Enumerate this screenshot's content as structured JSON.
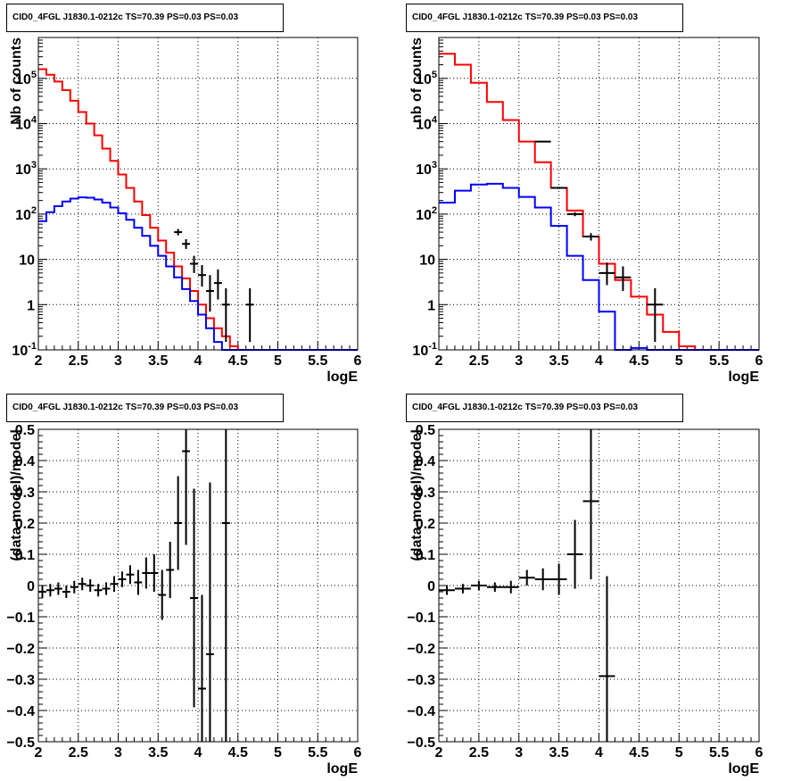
{
  "chart_data": [
    {
      "type": "line",
      "title": "CID0_4FGL J1830.1-0212c TS=70.39 PS=0.03 PS=0.03",
      "xlabel": "logE",
      "ylabel": "Nb of counts",
      "xlim": [
        2,
        6
      ],
      "ylim": [
        0.1,
        800000
      ],
      "yscale": "log",
      "grid": true,
      "x_ticks": [
        "2",
        "2.5",
        "3",
        "3.5",
        "4",
        "4.5",
        "5",
        "5.5",
        "6"
      ],
      "y_ticks": [
        "10^-1",
        "1",
        "10",
        "10^2",
        "10^3",
        "10^4",
        "10^5"
      ],
      "bin_edges": [
        2.0,
        2.1,
        2.2,
        2.3,
        2.4,
        2.5,
        2.6,
        2.7,
        2.8,
        2.9,
        3.0,
        3.1,
        3.2,
        3.3,
        3.4,
        3.5,
        3.6,
        3.7,
        3.8,
        3.9,
        4.0,
        4.1,
        4.2,
        4.3,
        4.4,
        4.5,
        4.6,
        4.7,
        4.8,
        4.9,
        5.0,
        5.1,
        5.2,
        5.3,
        5.4,
        5.5,
        5.6,
        5.7,
        5.8,
        5.9,
        6.0
      ],
      "series": [
        {
          "color": "#ff0000",
          "values": [
            160000,
            120000,
            85000,
            55000,
            32000,
            18000,
            10000,
            5500,
            2800,
            1500,
            750,
            380,
            190,
            95,
            50,
            26,
            14,
            7,
            3.8,
            2.0,
            1.0,
            0.5,
            0.3,
            0.2,
            0.12,
            0.1,
            0.1,
            0.1,
            0.1,
            0.1,
            0.1,
            0.1,
            0.1,
            0.1,
            0.1,
            0.1,
            0.1,
            0.1,
            0.1,
            0.1
          ]
        },
        {
          "color": "#0000ff",
          "values": [
            70,
            110,
            150,
            190,
            220,
            235,
            230,
            210,
            180,
            140,
            105,
            75,
            50,
            33,
            20,
            12,
            7,
            4,
            2.2,
            1.2,
            0.6,
            0.3,
            0.15,
            0.1,
            0.1,
            0.1,
            0.1,
            0.1,
            0.1,
            0.1,
            0.1,
            0.1,
            0.1,
            0.1,
            0.1,
            0.1,
            0.1,
            0.1,
            0.1,
            0.1
          ]
        }
      ],
      "points": [
        {
          "x": 3.75,
          "y": 40,
          "xerr": 0.05,
          "yerr": [
            6,
            7
          ]
        },
        {
          "x": 3.85,
          "y": 22,
          "xerr": 0.05,
          "yerr": [
            5,
            6
          ]
        },
        {
          "x": 3.95,
          "y": 8,
          "xerr": 0.05,
          "yerr": [
            3,
            4
          ]
        },
        {
          "x": 4.05,
          "y": 4.5,
          "xerr": 0.05,
          "yerr": [
            2,
            3
          ]
        },
        {
          "x": 4.15,
          "y": 2.0,
          "xerr": 0.05,
          "yerr": [
            1.3,
            2.5
          ]
        },
        {
          "x": 4.25,
          "y": 3.0,
          "xerr": 0.05,
          "yerr": [
            1.7,
            3
          ]
        },
        {
          "x": 4.35,
          "y": 1.0,
          "xerr": 0.05,
          "yerr": [
            0.85,
            1.3
          ]
        },
        {
          "x": 4.65,
          "y": 1.0,
          "xerr": 0.05,
          "yerr": [
            0.85,
            1.3
          ]
        }
      ]
    },
    {
      "type": "line",
      "title": "CID0_4FGL J1830.1-0212c TS=70.39 PS=0.03 PS=0.03",
      "xlabel": "logE",
      "ylabel": "nb of counts",
      "xlim": [
        2,
        6
      ],
      "ylim": [
        0.1,
        800000
      ],
      "yscale": "log",
      "grid": true,
      "x_ticks": [
        "2",
        "2.5",
        "3",
        "3.5",
        "4",
        "4.5",
        "5",
        "5.5",
        "6"
      ],
      "y_ticks": [
        "10^-1",
        "1",
        "10",
        "10^2",
        "10^3",
        "10^4",
        "10^5"
      ],
      "bin_edges": [
        2.0,
        2.2,
        2.4,
        2.6,
        2.8,
        3.0,
        3.2,
        3.4,
        3.6,
        3.8,
        4.0,
        4.2,
        4.4,
        4.6,
        4.8,
        5.0,
        5.2,
        5.4,
        5.6,
        5.8,
        6.0
      ],
      "series": [
        {
          "color": "#ff0000",
          "values": [
            350000,
            200000,
            80000,
            30000,
            12000,
            4000,
            1400,
            380,
            120,
            32,
            8,
            3.5,
            1.5,
            0.6,
            0.25,
            0.12,
            0.1,
            0.1,
            0.1,
            0.1
          ]
        },
        {
          "color": "#0000ff",
          "values": [
            180,
            330,
            450,
            470,
            380,
            240,
            140,
            55,
            12,
            3.5,
            0.7,
            0.1,
            0.11,
            0.1,
            0.1,
            0.1,
            0.1,
            0.1,
            0.1,
            0.1
          ]
        }
      ],
      "points": [
        {
          "x": 3.3,
          "y": 4000,
          "xerr": 0.1,
          "yerr": [
            60,
            60
          ]
        },
        {
          "x": 3.5,
          "y": 380,
          "xerr": 0.1,
          "yerr": [
            20,
            20
          ]
        },
        {
          "x": 3.7,
          "y": 100,
          "xerr": 0.1,
          "yerr": [
            10,
            10
          ]
        },
        {
          "x": 3.9,
          "y": 32,
          "xerr": 0.1,
          "yerr": [
            6,
            6
          ]
        },
        {
          "x": 4.1,
          "y": 5,
          "xerr": 0.1,
          "yerr": [
            2.3,
            3.5
          ]
        },
        {
          "x": 4.3,
          "y": 4,
          "xerr": 0.1,
          "yerr": [
            2,
            3
          ]
        },
        {
          "x": 4.7,
          "y": 1.0,
          "xerr": 0.1,
          "yerr": [
            0.85,
            1.3
          ]
        }
      ]
    },
    {
      "type": "scatter",
      "title": "CID0_4FGL J1830.1-0212c TS=70.39 PS=0.03 PS=0.03",
      "xlabel": "logE",
      "ylabel": "(data-model)/model",
      "xlim": [
        2,
        6
      ],
      "ylim": [
        -0.5,
        0.5
      ],
      "grid": true,
      "x_ticks": [
        "2",
        "2.5",
        "3",
        "3.5",
        "4",
        "4.5",
        "5",
        "5.5",
        "6"
      ],
      "y_ticks": [
        "−0.5",
        "−0.4",
        "−0.3",
        "−0.2",
        "−0.1",
        "0",
        "0.1",
        "0.2",
        "0.3",
        "0.4",
        "0.5"
      ],
      "points": [
        {
          "x": 2.05,
          "y": -0.02,
          "xerr": 0.05,
          "yerr": 0.02
        },
        {
          "x": 2.15,
          "y": -0.015,
          "xerr": 0.05,
          "yerr": 0.02
        },
        {
          "x": 2.25,
          "y": -0.01,
          "xerr": 0.05,
          "yerr": 0.02
        },
        {
          "x": 2.35,
          "y": -0.02,
          "xerr": 0.05,
          "yerr": 0.02
        },
        {
          "x": 2.45,
          "y": -0.005,
          "xerr": 0.05,
          "yerr": 0.02
        },
        {
          "x": 2.55,
          "y": 0.005,
          "xerr": 0.05,
          "yerr": 0.02
        },
        {
          "x": 2.65,
          "y": 0.0,
          "xerr": 0.05,
          "yerr": 0.02
        },
        {
          "x": 2.75,
          "y": -0.015,
          "xerr": 0.05,
          "yerr": 0.02
        },
        {
          "x": 2.85,
          "y": -0.01,
          "xerr": 0.05,
          "yerr": 0.02
        },
        {
          "x": 2.95,
          "y": 0.005,
          "xerr": 0.05,
          "yerr": 0.025
        },
        {
          "x": 3.05,
          "y": 0.02,
          "xerr": 0.05,
          "yerr": 0.025
        },
        {
          "x": 3.15,
          "y": 0.035,
          "xerr": 0.05,
          "yerr": 0.03
        },
        {
          "x": 3.25,
          "y": 0.01,
          "xerr": 0.05,
          "yerr": 0.04
        },
        {
          "x": 3.35,
          "y": 0.04,
          "xerr": 0.05,
          "yerr": 0.05
        },
        {
          "x": 3.45,
          "y": 0.04,
          "xerr": 0.05,
          "yerr": 0.06
        },
        {
          "x": 3.55,
          "y": -0.03,
          "xerr": 0.05,
          "yerr": 0.08
        },
        {
          "x": 3.65,
          "y": 0.05,
          "xerr": 0.05,
          "yerr": 0.09
        },
        {
          "x": 3.75,
          "y": 0.2,
          "xerr": 0.05,
          "yerr": 0.15
        },
        {
          "x": 3.85,
          "y": 0.43,
          "xerr": 0.05,
          "yerr": 0.3
        },
        {
          "x": 3.95,
          "y": -0.04,
          "xerr": 0.05,
          "yerr": 0.35
        },
        {
          "x": 4.05,
          "y": -0.33,
          "xerr": 0.05,
          "yerr": 0.3
        },
        {
          "x": 4.15,
          "y": -0.22,
          "xerr": 0.05,
          "yerr": 0.55
        },
        {
          "x": 4.35,
          "y": 0.2,
          "xerr": 0.05,
          "yerr": 0.9
        }
      ]
    },
    {
      "type": "scatter",
      "title": "CID0_4FGL J1830.1-0212c TS=70.39 PS=0.03 PS=0.03",
      "xlabel": "logE",
      "ylabel": "(data-model)/model",
      "xlim": [
        2,
        6
      ],
      "ylim": [
        -0.5,
        0.5
      ],
      "grid": true,
      "x_ticks": [
        "2",
        "2.5",
        "3",
        "3.5",
        "4",
        "4.5",
        "5",
        "5.5",
        "6"
      ],
      "y_ticks": [
        "−0.5",
        "−0.4",
        "−0.3",
        "−0.2",
        "−0.1",
        "0",
        "0.1",
        "0.2",
        "0.3",
        "0.4",
        "0.5"
      ],
      "points": [
        {
          "x": 2.1,
          "y": -0.015,
          "xerr": 0.1,
          "yerr": 0.015
        },
        {
          "x": 2.3,
          "y": -0.01,
          "xerr": 0.1,
          "yerr": 0.015
        },
        {
          "x": 2.5,
          "y": 0.0,
          "xerr": 0.1,
          "yerr": 0.015
        },
        {
          "x": 2.7,
          "y": -0.005,
          "xerr": 0.1,
          "yerr": 0.015
        },
        {
          "x": 2.9,
          "y": -0.005,
          "xerr": 0.1,
          "yerr": 0.02
        },
        {
          "x": 3.1,
          "y": 0.025,
          "xerr": 0.1,
          "yerr": 0.025
        },
        {
          "x": 3.3,
          "y": 0.02,
          "xerr": 0.1,
          "yerr": 0.035
        },
        {
          "x": 3.5,
          "y": 0.02,
          "xerr": 0.1,
          "yerr": 0.05
        },
        {
          "x": 3.7,
          "y": 0.1,
          "xerr": 0.1,
          "yerr": 0.11
        },
        {
          "x": 3.9,
          "y": 0.27,
          "xerr": 0.1,
          "yerr": 0.25
        },
        {
          "x": 4.1,
          "y": -0.29,
          "xerr": 0.1,
          "yerr": 0.32
        }
      ]
    }
  ]
}
